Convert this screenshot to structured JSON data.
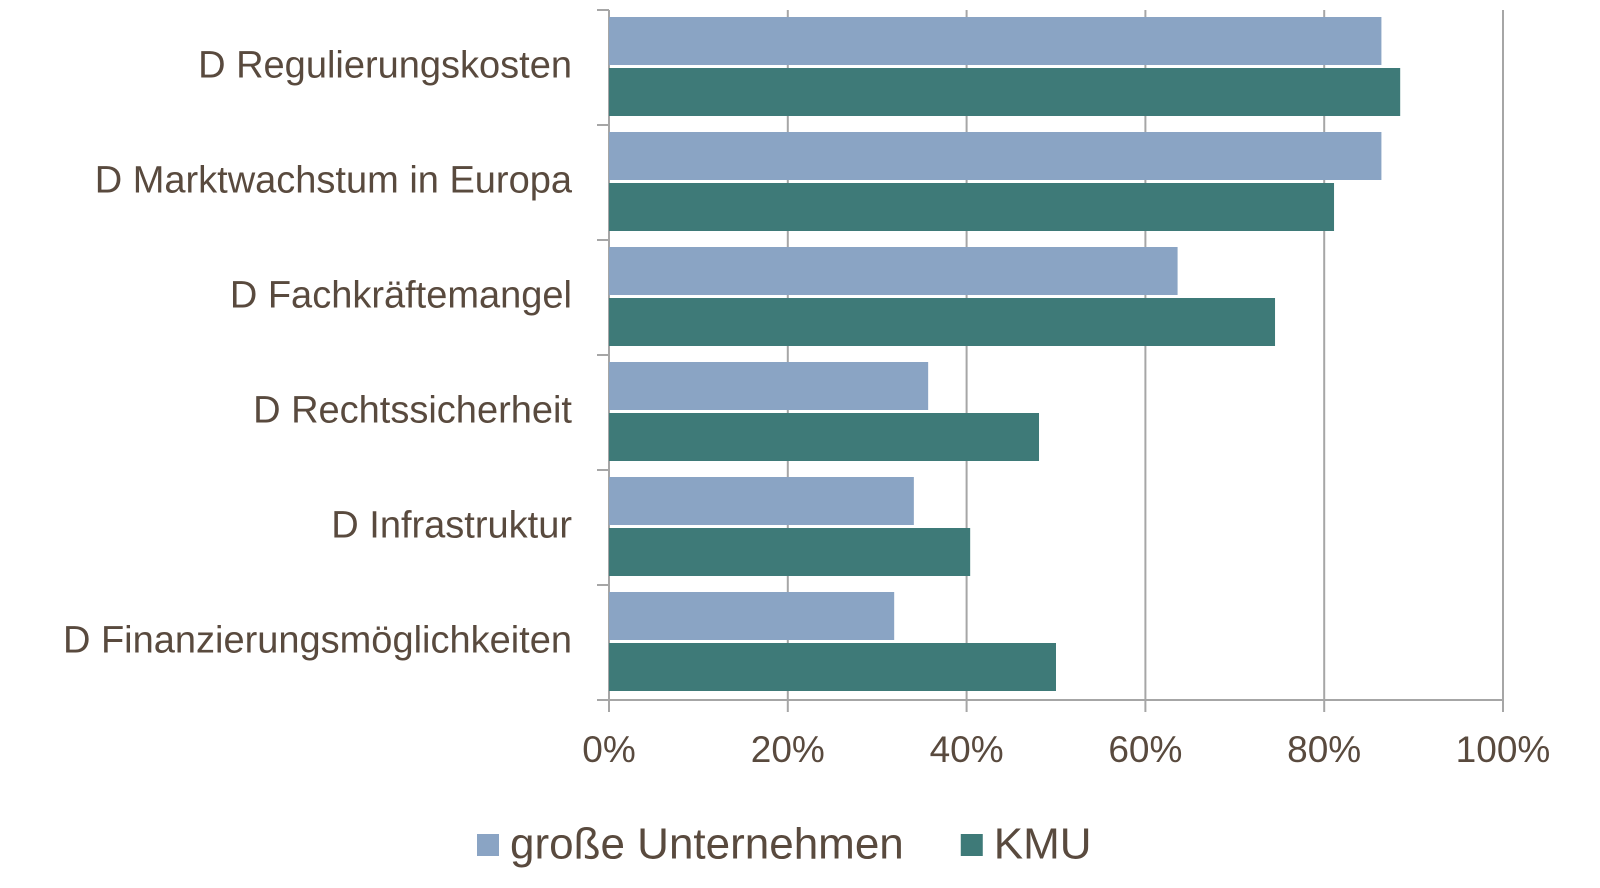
{
  "chart_data": {
    "type": "bar",
    "orientation": "horizontal",
    "categories": [
      "D Regulierungskosten",
      "D Marktwachstum in Europa",
      "D Fachkräftemangel",
      "D Rechtssicherheit",
      "D Infrastruktur",
      "D Finanzierungsmöglichkeiten"
    ],
    "series": [
      {
        "name": "große Unternehmen",
        "color": "#8aa4c4",
        "values": [
          86.4,
          86.4,
          63.6,
          35.7,
          34.1,
          31.9
        ]
      },
      {
        "name": "KMU",
        "color": "#3e7a78",
        "values": [
          88.5,
          81.1,
          74.5,
          48.1,
          40.4,
          50.0
        ]
      }
    ],
    "xlim": [
      0,
      100
    ],
    "xticks": [
      {
        "value": 0,
        "label": "0%"
      },
      {
        "value": 20,
        "label": "20%"
      },
      {
        "value": 40,
        "label": "40%"
      },
      {
        "value": 60,
        "label": "60%"
      },
      {
        "value": 80,
        "label": "80%"
      },
      {
        "value": 100,
        "label": "100%"
      }
    ],
    "grid": true,
    "legend": "bottom"
  }
}
